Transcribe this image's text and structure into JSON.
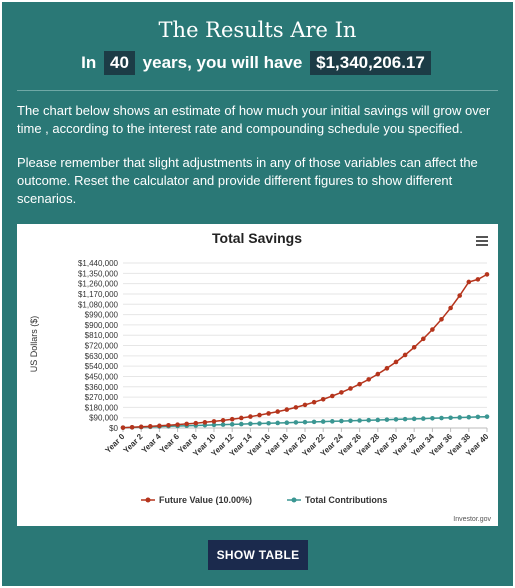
{
  "header": {
    "title": "The Results Are In",
    "sentence_prefix": "In",
    "years": "40",
    "sentence_middle": "years, you will have",
    "amount": "$1,340,206.17"
  },
  "paragraphs": [
    "The chart below shows an estimate of how much your initial savings will grow over time , according to the interest rate and compounding schedule you specified.",
    "Please remember that slight adjustments in any of those variables can affect the outcome. Reset the calculator and provide different figures to show different scenarios."
  ],
  "show_table_label": "SHOW TABLE",
  "chart_data": {
    "type": "line",
    "title": "Total Savings",
    "ylabel": "US Dollars ($)",
    "xlabel": "",
    "credit": "Investor.gov",
    "ylim": [
      0,
      1440000
    ],
    "yticks": [
      "$0",
      "$90,000",
      "$180,000",
      "$270,000",
      "$360,000",
      "$450,000",
      "$540,000",
      "$630,000",
      "$720,000",
      "$810,000",
      "$900,000",
      "$990,000",
      "$1,080,000",
      "$1,170,000",
      "$1,260,000",
      "$1,350,000",
      "$1,440,000"
    ],
    "x": [
      "Year 0",
      "Year 1",
      "Year 2",
      "Year 3",
      "Year 4",
      "Year 5",
      "Year 6",
      "Year 7",
      "Year 8",
      "Year 9",
      "Year 10",
      "Year 11",
      "Year 12",
      "Year 13",
      "Year 14",
      "Year 15",
      "Year 16",
      "Year 17",
      "Year 18",
      "Year 19",
      "Year 20",
      "Year 21",
      "Year 22",
      "Year 23",
      "Year 24",
      "Year 25",
      "Year 26",
      "Year 27",
      "Year 28",
      "Year 29",
      "Year 30",
      "Year 31",
      "Year 32",
      "Year 33",
      "Year 34",
      "Year 35",
      "Year 36",
      "Year 37",
      "Year 38",
      "Year 39",
      "Year 40"
    ],
    "x_tick_labels": [
      "Year 0",
      "Year 2",
      "Year 4",
      "Year 6",
      "Year 8",
      "Year 10",
      "Year 12",
      "Year 14",
      "Year 16",
      "Year 18",
      "Year 20",
      "Year 22",
      "Year 24",
      "Year 26",
      "Year 28",
      "Year 30",
      "Year 32",
      "Year 34",
      "Year 36",
      "Year 38",
      "Year 40"
    ],
    "series": [
      {
        "name": "Future Value (10.00%)",
        "color": "#b5341c",
        "values": [
          3000,
          6400,
          10100,
          14300,
          18800,
          23800,
          29400,
          35500,
          42200,
          49600,
          57700,
          66700,
          76500,
          87400,
          99400,
          112500,
          127100,
          143100,
          160600,
          180000,
          201400,
          224900,
          250800,
          279200,
          310400,
          344900,
          382700,
          424400,
          470300,
          520800,
          576300,
          637300,
          704400,
          778300,
          859400,
          948900,
          1047200,
          1155400,
          1274300,
          1297000,
          1340206
        ]
      },
      {
        "name": "Total Contributions",
        "color": "#3a9692",
        "values": [
          3000,
          5400,
          7800,
          10200,
          12600,
          15000,
          17400,
          19800,
          22200,
          24600,
          27000,
          29400,
          31800,
          34200,
          36600,
          39000,
          41400,
          43800,
          46200,
          48600,
          51000,
          53400,
          55800,
          58200,
          60600,
          63000,
          65400,
          67800,
          70200,
          72600,
          75000,
          77400,
          79800,
          82200,
          84600,
          87000,
          89400,
          91800,
          94200,
          96600,
          99000
        ]
      }
    ],
    "legend_position": "bottom",
    "grid": true
  },
  "icons": {
    "menu": "hamburger-menu-icon"
  }
}
